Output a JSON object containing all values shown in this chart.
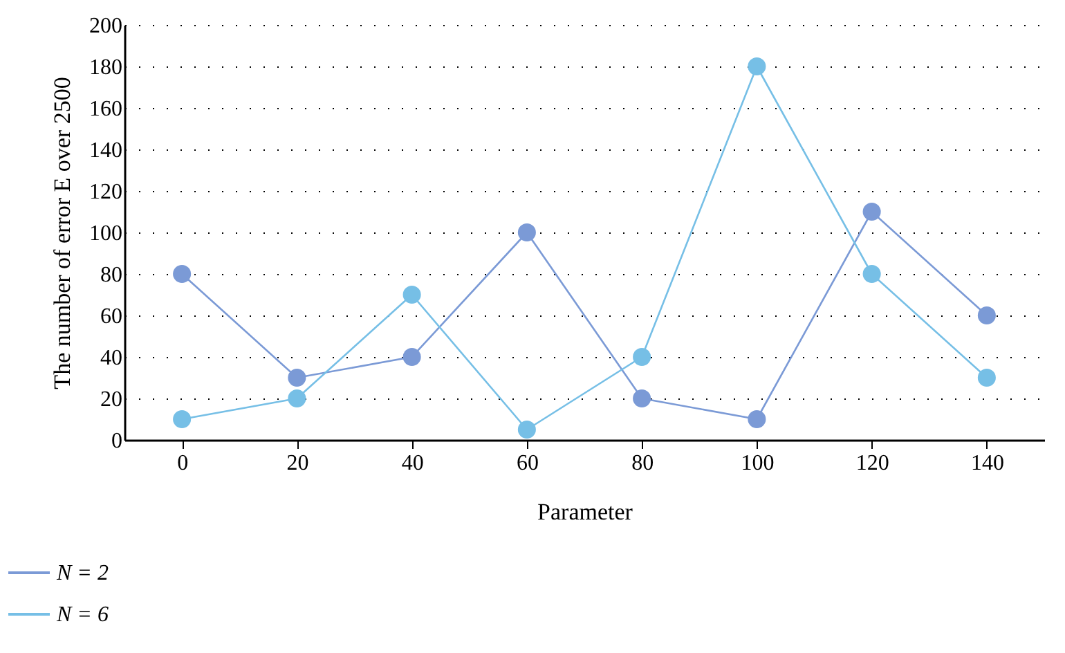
{
  "chart_data": {
    "type": "line",
    "xlabel": "Parameter",
    "ylabel": "The number of error E over 2500",
    "x": [
      0,
      20,
      40,
      60,
      80,
      100,
      120,
      140
    ],
    "series": [
      {
        "name": "N = 2",
        "color": "#7b9ad6",
        "values": [
          80,
          30,
          40,
          100,
          20,
          10,
          110,
          60
        ]
      },
      {
        "name": "N = 6",
        "color": "#76bfe6",
        "values": [
          10,
          20,
          70,
          5,
          40,
          180,
          80,
          30
        ]
      }
    ],
    "xlim": [
      -10,
      150
    ],
    "xticks": [
      0,
      20,
      40,
      60,
      80,
      100,
      120,
      140
    ],
    "ylim": [
      0,
      200
    ],
    "yticks": [
      0,
      20,
      40,
      60,
      80,
      100,
      120,
      140,
      160,
      180,
      200
    ],
    "grid": "y",
    "legend": "bottom left",
    "marker": "circle",
    "line_style": "solid"
  }
}
